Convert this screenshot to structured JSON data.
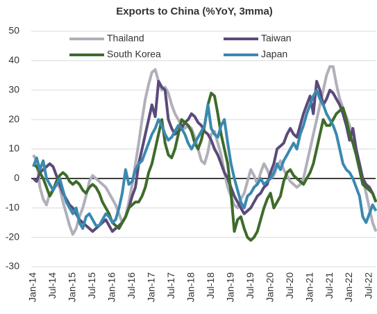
{
  "chart_data": {
    "type": "line",
    "title": "Exports to China (%YoY, 3mma)",
    "categories": [
      "Jan-14",
      null,
      null,
      null,
      null,
      null,
      "Jul-14",
      null,
      null,
      null,
      null,
      null,
      "Jan-15",
      null,
      null,
      null,
      null,
      null,
      "Jul-15",
      null,
      null,
      null,
      null,
      null,
      "Jan-16",
      null,
      null,
      null,
      null,
      null,
      "Jul-16",
      null,
      null,
      null,
      null,
      null,
      "Jan-17",
      null,
      null,
      null,
      null,
      null,
      "Jul-17",
      null,
      null,
      null,
      null,
      null,
      "Jan-18",
      null,
      null,
      null,
      null,
      null,
      "Jul-18",
      null,
      null,
      null,
      null,
      null,
      "Jan-19",
      null,
      null,
      null,
      null,
      null,
      "Jul-19",
      null,
      null,
      null,
      null,
      null,
      "Jan-20",
      null,
      null,
      null,
      null,
      null,
      "Jul-20",
      null,
      null,
      null,
      null,
      null,
      "Jan-21",
      null,
      null,
      null,
      null,
      null,
      "Jul-21",
      null,
      null,
      null,
      null,
      null,
      "Jan-22",
      null,
      null,
      null,
      null,
      null,
      "Jul-22",
      null,
      null
    ],
    "series": [
      {
        "name": "Thailand",
        "color": "#b0b0ba",
        "values": [
          8,
          6,
          -3,
          -7,
          -9,
          -5,
          -4,
          -2,
          -3,
          -8,
          -12,
          -16,
          -19,
          -17,
          -13,
          -10,
          -6,
          -1,
          1,
          0,
          -1,
          -2,
          -3,
          -5,
          -7,
          -9,
          -12,
          -15,
          -13,
          -8,
          -2,
          5,
          12,
          20,
          27,
          32,
          36,
          37,
          33,
          30,
          31,
          29,
          25,
          22,
          20,
          18,
          17,
          18,
          17,
          14,
          10,
          6,
          5,
          9,
          15,
          16,
          12,
          8,
          2,
          -3,
          -6,
          -9,
          -10,
          -7,
          -5,
          -1,
          3,
          1,
          -2,
          2,
          5,
          3,
          0,
          1,
          4,
          6,
          3,
          1,
          -1,
          -2,
          -3,
          -2,
          0,
          5,
          10,
          15,
          20,
          25,
          30,
          35,
          38,
          38,
          32,
          27,
          24,
          21,
          18,
          14,
          9,
          5,
          0,
          -5,
          -10,
          -15,
          -18
        ]
      },
      {
        "name": "Taiwan",
        "color": "#5a4a7a",
        "values": [
          0,
          -1,
          2,
          3,
          4,
          5,
          4,
          1,
          -2,
          -5,
          -7,
          -9,
          -10,
          -12,
          -14,
          -15,
          -16,
          -17,
          -18,
          -17,
          -16,
          -15,
          -14,
          -16,
          -18,
          -17,
          -16,
          -15,
          -13,
          -10,
          -6,
          -3,
          5,
          10,
          15,
          20,
          25,
          21,
          33,
          31,
          30,
          20,
          17,
          15,
          16,
          17,
          19,
          20,
          22,
          21,
          19,
          18,
          16,
          15,
          13,
          10,
          8,
          5,
          2,
          0,
          -3,
          -6,
          -8,
          -10,
          -12,
          -11,
          -10,
          -8,
          -6,
          -5,
          -3,
          -2,
          2,
          5,
          10,
          11,
          12,
          15,
          17,
          15,
          14,
          18,
          22,
          25,
          28,
          22,
          33,
          30,
          25,
          27,
          30,
          29,
          27,
          25,
          22,
          18,
          13,
          17,
          10,
          5,
          0,
          -2,
          -3,
          -5,
          -8
        ]
      },
      {
        "name": "South Korea",
        "color": "#3e6b2b",
        "values": [
          5,
          4,
          2,
          0,
          -3,
          -6,
          -4,
          -1,
          1,
          2,
          1,
          -1,
          -2,
          -1,
          -2,
          -4,
          -5,
          -3,
          -2,
          -3,
          -5,
          -8,
          -10,
          -12,
          -15,
          -16,
          -17,
          -15,
          -13,
          -10,
          -9,
          -8,
          -8,
          -6,
          -3,
          2,
          5,
          10,
          15,
          20,
          12,
          8,
          7,
          10,
          15,
          20,
          19,
          18,
          16,
          12,
          10,
          13,
          18,
          25,
          29,
          28,
          22,
          15,
          10,
          5,
          -5,
          -18,
          -14,
          -13,
          -17,
          -20,
          -21,
          -20,
          -18,
          -14,
          -10,
          -7,
          -5,
          -10,
          -8,
          -6,
          -1,
          2,
          3,
          1,
          0,
          -1,
          -2,
          0,
          2,
          5,
          10,
          15,
          20,
          18,
          18,
          20,
          22,
          23,
          24,
          20,
          15,
          12,
          8,
          3,
          -2,
          -3,
          -4,
          -5,
          -8
        ]
      },
      {
        "name": "Japan",
        "color": "#3a89b0",
        "values": [
          4,
          7,
          3,
          6,
          0,
          -2,
          -4,
          -2,
          0,
          -4,
          -8,
          -10,
          -12,
          -10,
          -15,
          -17,
          -13,
          -12,
          -14,
          -16,
          -16,
          -14,
          -12,
          -13,
          -15,
          -14,
          -10,
          -5,
          3,
          -2,
          -1,
          3,
          5,
          6,
          9,
          12,
          15,
          17,
          20,
          18,
          15,
          13,
          14,
          16,
          18,
          17,
          15,
          12,
          10,
          12,
          14,
          16,
          18,
          25,
          17,
          15,
          14,
          18,
          20,
          12,
          5,
          0,
          -4,
          -8,
          -10,
          -6,
          -5,
          -3,
          -2,
          0,
          -2,
          -1,
          0,
          2,
          5,
          3,
          6,
          8,
          10,
          12,
          10,
          15,
          18,
          22,
          25,
          28,
          30,
          27,
          25,
          22,
          20,
          18,
          15,
          10,
          5,
          3,
          2,
          0,
          -3,
          -6,
          -13,
          -15,
          -12,
          -9,
          -11
        ]
      }
    ],
    "ylim": [
      -30,
      50
    ],
    "yticks": [
      -30,
      -20,
      -10,
      0,
      10,
      20,
      30,
      40,
      50
    ],
    "grid": true,
    "legend": "top"
  }
}
